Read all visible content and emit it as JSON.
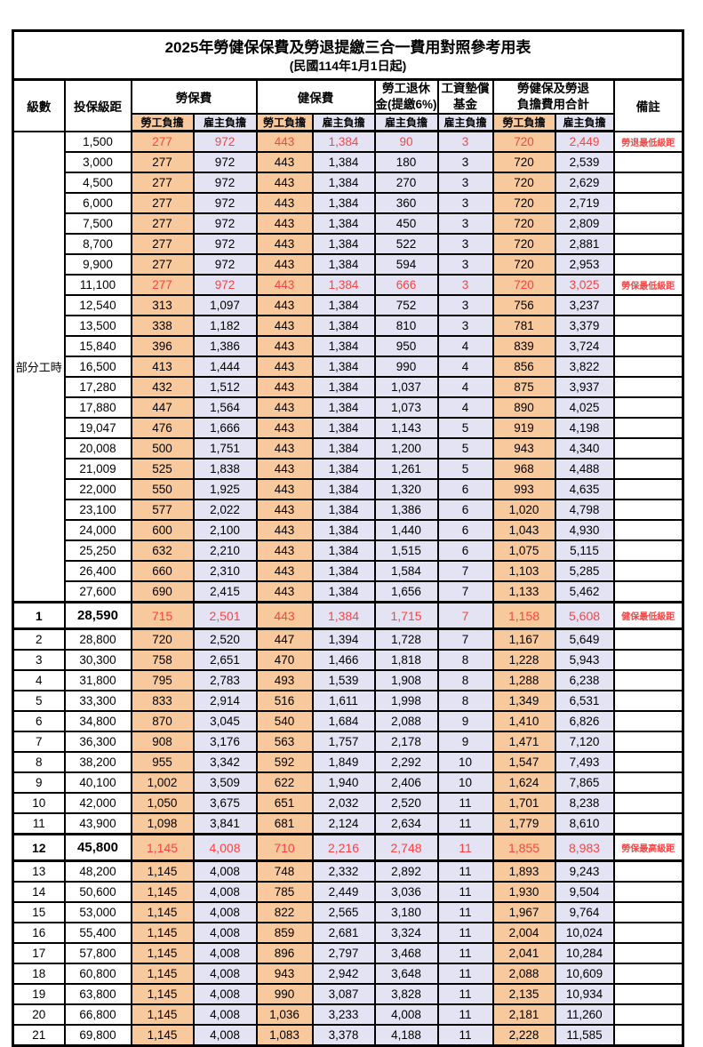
{
  "title": "2025年勞健保保費及勞退提繳三合一費用對照參考用表",
  "subtitle": "(民國114年1月1日起)",
  "colors": {
    "employee_bg": "#f8c99c",
    "employer_bg": "#e3e3f3",
    "highlight_text": "#fb4343",
    "border": "#000000"
  },
  "header": {
    "level": "級數",
    "bracket": "投保級距",
    "labor_fee": "勞保費",
    "health_fee": "健保費",
    "pension_line1": "勞工退休",
    "pension_line2": "金(提繳6%)",
    "wage_fund_line1": "工資墊償",
    "wage_fund_line2": "基金",
    "total_line1": "勞健保及勞退",
    "total_line2": "負擔費用合計",
    "remark": "備註",
    "employee": "勞工負擔",
    "employer": "雇主負擔"
  },
  "part_time_label": "部分工時",
  "part_time_rowspan": 23,
  "rows": [
    {
      "lv": "",
      "sal": "1,500",
      "v": [
        "277",
        "972",
        "443",
        "1,384",
        "90",
        "3",
        "720",
        "2,449"
      ],
      "rm": "勞退最低級距",
      "cls": "red"
    },
    {
      "lv": "",
      "sal": "3,000",
      "v": [
        "277",
        "972",
        "443",
        "1,384",
        "180",
        "3",
        "720",
        "2,539"
      ],
      "rm": "",
      "cls": ""
    },
    {
      "lv": "",
      "sal": "4,500",
      "v": [
        "277",
        "972",
        "443",
        "1,384",
        "270",
        "3",
        "720",
        "2,629"
      ],
      "rm": "",
      "cls": ""
    },
    {
      "lv": "",
      "sal": "6,000",
      "v": [
        "277",
        "972",
        "443",
        "1,384",
        "360",
        "3",
        "720",
        "2,719"
      ],
      "rm": "",
      "cls": ""
    },
    {
      "lv": "",
      "sal": "7,500",
      "v": [
        "277",
        "972",
        "443",
        "1,384",
        "450",
        "3",
        "720",
        "2,809"
      ],
      "rm": "",
      "cls": ""
    },
    {
      "lv": "",
      "sal": "8,700",
      "v": [
        "277",
        "972",
        "443",
        "1,384",
        "522",
        "3",
        "720",
        "2,881"
      ],
      "rm": "",
      "cls": ""
    },
    {
      "lv": "",
      "sal": "9,900",
      "v": [
        "277",
        "972",
        "443",
        "1,384",
        "594",
        "3",
        "720",
        "2,953"
      ],
      "rm": "",
      "cls": ""
    },
    {
      "lv": "",
      "sal": "11,100",
      "v": [
        "277",
        "972",
        "443",
        "1,384",
        "666",
        "3",
        "720",
        "3,025"
      ],
      "rm": "勞保最低級距",
      "cls": "red"
    },
    {
      "lv": "",
      "sal": "12,540",
      "v": [
        "313",
        "1,097",
        "443",
        "1,384",
        "752",
        "3",
        "756",
        "3,237"
      ],
      "rm": "",
      "cls": ""
    },
    {
      "lv": "",
      "sal": "13,500",
      "v": [
        "338",
        "1,182",
        "443",
        "1,384",
        "810",
        "3",
        "781",
        "3,379"
      ],
      "rm": "",
      "cls": ""
    },
    {
      "lv": "",
      "sal": "15,840",
      "v": [
        "396",
        "1,386",
        "443",
        "1,384",
        "950",
        "4",
        "839",
        "3,724"
      ],
      "rm": "",
      "cls": ""
    },
    {
      "lv": "",
      "sal": "16,500",
      "v": [
        "413",
        "1,444",
        "443",
        "1,384",
        "990",
        "4",
        "856",
        "3,822"
      ],
      "rm": "",
      "cls": ""
    },
    {
      "lv": "",
      "sal": "17,280",
      "v": [
        "432",
        "1,512",
        "443",
        "1,384",
        "1,037",
        "4",
        "875",
        "3,937"
      ],
      "rm": "",
      "cls": ""
    },
    {
      "lv": "",
      "sal": "17,880",
      "v": [
        "447",
        "1,564",
        "443",
        "1,384",
        "1,073",
        "4",
        "890",
        "4,025"
      ],
      "rm": "",
      "cls": ""
    },
    {
      "lv": "",
      "sal": "19,047",
      "v": [
        "476",
        "1,666",
        "443",
        "1,384",
        "1,143",
        "5",
        "919",
        "4,198"
      ],
      "rm": "",
      "cls": ""
    },
    {
      "lv": "",
      "sal": "20,008",
      "v": [
        "500",
        "1,751",
        "443",
        "1,384",
        "1,200",
        "5",
        "943",
        "4,340"
      ],
      "rm": "",
      "cls": ""
    },
    {
      "lv": "",
      "sal": "21,009",
      "v": [
        "525",
        "1,838",
        "443",
        "1,384",
        "1,261",
        "5",
        "968",
        "4,488"
      ],
      "rm": "",
      "cls": ""
    },
    {
      "lv": "",
      "sal": "22,000",
      "v": [
        "550",
        "1,925",
        "443",
        "1,384",
        "1,320",
        "6",
        "993",
        "4,635"
      ],
      "rm": "",
      "cls": ""
    },
    {
      "lv": "",
      "sal": "23,100",
      "v": [
        "577",
        "2,022",
        "443",
        "1,384",
        "1,386",
        "6",
        "1,020",
        "4,798"
      ],
      "rm": "",
      "cls": ""
    },
    {
      "lv": "",
      "sal": "24,000",
      "v": [
        "600",
        "2,100",
        "443",
        "1,384",
        "1,440",
        "6",
        "1,043",
        "4,930"
      ],
      "rm": "",
      "cls": ""
    },
    {
      "lv": "",
      "sal": "25,250",
      "v": [
        "632",
        "2,210",
        "443",
        "1,384",
        "1,515",
        "6",
        "1,075",
        "5,115"
      ],
      "rm": "",
      "cls": ""
    },
    {
      "lv": "",
      "sal": "26,400",
      "v": [
        "660",
        "2,310",
        "443",
        "1,384",
        "1,584",
        "7",
        "1,103",
        "5,285"
      ],
      "rm": "",
      "cls": ""
    },
    {
      "lv": "",
      "sal": "27,600",
      "v": [
        "690",
        "2,415",
        "443",
        "1,384",
        "1,656",
        "7",
        "1,133",
        "5,462"
      ],
      "rm": "",
      "cls": ""
    },
    {
      "lv": "1",
      "sal": "28,590",
      "v": [
        "715",
        "2,501",
        "443",
        "1,384",
        "1,715",
        "7",
        "1,158",
        "5,608"
      ],
      "rm": "健保最低級距",
      "cls": "hl"
    },
    {
      "lv": "2",
      "sal": "28,800",
      "v": [
        "720",
        "2,520",
        "447",
        "1,394",
        "1,728",
        "7",
        "1,167",
        "5,649"
      ],
      "rm": "",
      "cls": ""
    },
    {
      "lv": "3",
      "sal": "30,300",
      "v": [
        "758",
        "2,651",
        "470",
        "1,466",
        "1,818",
        "8",
        "1,228",
        "5,943"
      ],
      "rm": "",
      "cls": ""
    },
    {
      "lv": "4",
      "sal": "31,800",
      "v": [
        "795",
        "2,783",
        "493",
        "1,539",
        "1,908",
        "8",
        "1,288",
        "6,238"
      ],
      "rm": "",
      "cls": ""
    },
    {
      "lv": "5",
      "sal": "33,300",
      "v": [
        "833",
        "2,914",
        "516",
        "1,611",
        "1,998",
        "8",
        "1,349",
        "6,531"
      ],
      "rm": "",
      "cls": ""
    },
    {
      "lv": "6",
      "sal": "34,800",
      "v": [
        "870",
        "3,045",
        "540",
        "1,684",
        "2,088",
        "9",
        "1,410",
        "6,826"
      ],
      "rm": "",
      "cls": ""
    },
    {
      "lv": "7",
      "sal": "36,300",
      "v": [
        "908",
        "3,176",
        "563",
        "1,757",
        "2,178",
        "9",
        "1,471",
        "7,120"
      ],
      "rm": "",
      "cls": ""
    },
    {
      "lv": "8",
      "sal": "38,200",
      "v": [
        "955",
        "3,342",
        "592",
        "1,849",
        "2,292",
        "10",
        "1,547",
        "7,493"
      ],
      "rm": "",
      "cls": ""
    },
    {
      "lv": "9",
      "sal": "40,100",
      "v": [
        "1,002",
        "3,509",
        "622",
        "1,940",
        "2,406",
        "10",
        "1,624",
        "7,865"
      ],
      "rm": "",
      "cls": ""
    },
    {
      "lv": "10",
      "sal": "42,000",
      "v": [
        "1,050",
        "3,675",
        "651",
        "2,032",
        "2,520",
        "11",
        "1,701",
        "8,238"
      ],
      "rm": "",
      "cls": ""
    },
    {
      "lv": "11",
      "sal": "43,900",
      "v": [
        "1,098",
        "3,841",
        "681",
        "2,124",
        "2,634",
        "11",
        "1,779",
        "8,610"
      ],
      "rm": "",
      "cls": ""
    },
    {
      "lv": "12",
      "sal": "45,800",
      "v": [
        "1,145",
        "4,008",
        "710",
        "2,216",
        "2,748",
        "11",
        "1,855",
        "8,983"
      ],
      "rm": "勞保最高級距",
      "cls": "hl"
    },
    {
      "lv": "13",
      "sal": "48,200",
      "v": [
        "1,145",
        "4,008",
        "748",
        "2,332",
        "2,892",
        "11",
        "1,893",
        "9,243"
      ],
      "rm": "",
      "cls": ""
    },
    {
      "lv": "14",
      "sal": "50,600",
      "v": [
        "1,145",
        "4,008",
        "785",
        "2,449",
        "3,036",
        "11",
        "1,930",
        "9,504"
      ],
      "rm": "",
      "cls": ""
    },
    {
      "lv": "15",
      "sal": "53,000",
      "v": [
        "1,145",
        "4,008",
        "822",
        "2,565",
        "3,180",
        "11",
        "1,967",
        "9,764"
      ],
      "rm": "",
      "cls": ""
    },
    {
      "lv": "16",
      "sal": "55,400",
      "v": [
        "1,145",
        "4,008",
        "859",
        "2,681",
        "3,324",
        "11",
        "2,004",
        "10,024"
      ],
      "rm": "",
      "cls": ""
    },
    {
      "lv": "17",
      "sal": "57,800",
      "v": [
        "1,145",
        "4,008",
        "896",
        "2,797",
        "3,468",
        "11",
        "2,041",
        "10,284"
      ],
      "rm": "",
      "cls": ""
    },
    {
      "lv": "18",
      "sal": "60,800",
      "v": [
        "1,145",
        "4,008",
        "943",
        "2,942",
        "3,648",
        "11",
        "2,088",
        "10,609"
      ],
      "rm": "",
      "cls": ""
    },
    {
      "lv": "19",
      "sal": "63,800",
      "v": [
        "1,145",
        "4,008",
        "990",
        "3,087",
        "3,828",
        "11",
        "2,135",
        "10,934"
      ],
      "rm": "",
      "cls": ""
    },
    {
      "lv": "20",
      "sal": "66,800",
      "v": [
        "1,145",
        "4,008",
        "1,036",
        "3,233",
        "4,008",
        "11",
        "2,181",
        "11,260"
      ],
      "rm": "",
      "cls": ""
    },
    {
      "lv": "21",
      "sal": "69,800",
      "v": [
        "1,145",
        "4,008",
        "1,083",
        "3,378",
        "4,188",
        "11",
        "2,228",
        "11,585"
      ],
      "rm": "",
      "cls": ""
    }
  ]
}
